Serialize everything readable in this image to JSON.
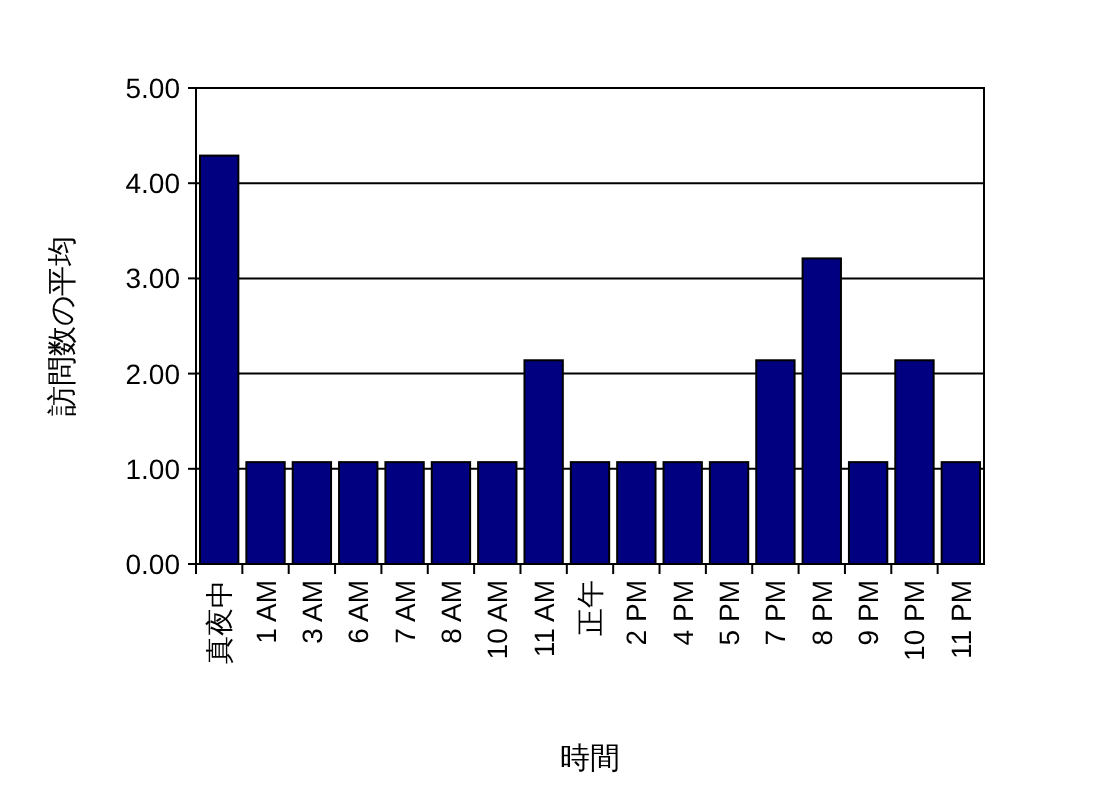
{
  "chart_data": {
    "type": "bar",
    "xlabel": "時間",
    "ylabel": "訪問数の平均",
    "categories": [
      "真夜中",
      "1 AM",
      "3 AM",
      "6 AM",
      "7 AM",
      "8 AM",
      "10 AM",
      "11 AM",
      "正午",
      "2 PM",
      "4 PM",
      "5 PM",
      "7 PM",
      "8 PM",
      "9 PM",
      "10 PM",
      "11 PM"
    ],
    "values": [
      4.29,
      1.07,
      1.07,
      1.07,
      1.07,
      1.07,
      1.07,
      2.14,
      1.07,
      1.07,
      1.07,
      1.07,
      2.14,
      3.21,
      1.07,
      2.14,
      1.07
    ],
    "color": "#000080",
    "ylim": [
      0,
      5
    ],
    "yticks": [
      {
        "value": 0,
        "label": "0.00"
      },
      {
        "value": 1,
        "label": "1.00"
      },
      {
        "value": 2,
        "label": "2.00"
      },
      {
        "value": 3,
        "label": "3.00"
      },
      {
        "value": 4,
        "label": "4.00"
      },
      {
        "value": 5,
        "label": "5.00"
      }
    ],
    "grid": "y"
  }
}
